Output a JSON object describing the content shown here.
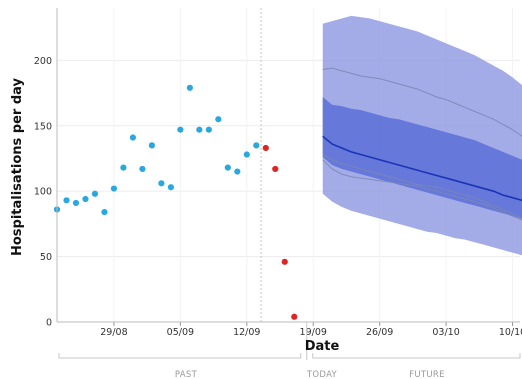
{
  "chart_data": {
    "type": "scatter",
    "xlabel": "Date",
    "ylabel": "Hospitalisations per day",
    "ylim": [
      0,
      240
    ],
    "y_ticks": [
      "0",
      "50",
      "100",
      "150",
      "200"
    ],
    "x_ticks": [
      "29/08",
      "05/09",
      "12/09",
      "19/09",
      "26/09",
      "03/10",
      "10/10"
    ],
    "grid": true,
    "observed_color": "#29a8e0",
    "incomplete_color": "#e02424",
    "band_outer_color": "#8c97e0",
    "band_inner_color": "#5c6fd6",
    "median_color": "#1a35b8",
    "scenario_line_color": "#7b86b8",
    "observed": [
      {
        "x": "2021-08-23",
        "y": 86
      },
      {
        "x": "2021-08-24",
        "y": 93
      },
      {
        "x": "2021-08-25",
        "y": 91
      },
      {
        "x": "2021-08-26",
        "y": 94
      },
      {
        "x": "2021-08-27",
        "y": 98
      },
      {
        "x": "2021-08-28",
        "y": 84
      },
      {
        "x": "2021-08-29",
        "y": 102
      },
      {
        "x": "2021-08-30",
        "y": 118
      },
      {
        "x": "2021-08-31",
        "y": 141
      },
      {
        "x": "2021-09-01",
        "y": 117
      },
      {
        "x": "2021-09-02",
        "y": 135
      },
      {
        "x": "2021-09-03",
        "y": 106
      },
      {
        "x": "2021-09-04",
        "y": 103
      },
      {
        "x": "2021-09-05",
        "y": 147
      },
      {
        "x": "2021-09-06",
        "y": 179
      },
      {
        "x": "2021-09-07",
        "y": 147
      },
      {
        "x": "2021-09-08",
        "y": 147
      },
      {
        "x": "2021-09-09",
        "y": 155
      },
      {
        "x": "2021-09-10",
        "y": 118
      },
      {
        "x": "2021-09-11",
        "y": 115
      },
      {
        "x": "2021-09-12",
        "y": 128
      },
      {
        "x": "2021-09-13",
        "y": 135
      }
    ],
    "incomplete": [
      {
        "x": "2021-09-14",
        "y": 133
      },
      {
        "x": "2021-09-15",
        "y": 117
      },
      {
        "x": "2021-09-16",
        "y": 46
      },
      {
        "x": "2021-09-17",
        "y": 4
      }
    ],
    "forecast": {
      "x": [
        "2021-09-20",
        "2021-09-21",
        "2021-09-22",
        "2021-09-23",
        "2021-09-24",
        "2021-09-25",
        "2021-09-26",
        "2021-09-27",
        "2021-09-28",
        "2021-09-29",
        "2021-09-30",
        "2021-10-01",
        "2021-10-02",
        "2021-10-03",
        "2021-10-04",
        "2021-10-05",
        "2021-10-06",
        "2021-10-07",
        "2021-10-08",
        "2021-10-09",
        "2021-10-10",
        "2021-10-11",
        "2021-10-12"
      ],
      "median": [
        142,
        136,
        133,
        130,
        128,
        126,
        124,
        122,
        120,
        118,
        116,
        114,
        112,
        110,
        108,
        106,
        104,
        102,
        100,
        97,
        95,
        93,
        91
      ],
      "inner_lower": [
        126,
        120,
        117,
        115,
        113,
        111,
        109,
        107,
        105,
        103,
        101,
        99,
        97,
        95,
        93,
        91,
        89,
        87,
        85,
        83,
        81,
        79,
        77
      ],
      "inner_upper": [
        172,
        166,
        165,
        163,
        162,
        160,
        158,
        156,
        155,
        153,
        151,
        149,
        147,
        145,
        143,
        141,
        139,
        136,
        133,
        130,
        127,
        124,
        120
      ],
      "outer_lower": [
        98,
        92,
        88,
        85,
        83,
        81,
        79,
        77,
        75,
        73,
        71,
        69,
        68,
        66,
        64,
        63,
        61,
        59,
        57,
        55,
        53,
        51,
        50
      ],
      "outer_upper": [
        228,
        230,
        232,
        234,
        233,
        232,
        230,
        228,
        226,
        224,
        222,
        219,
        216,
        213,
        210,
        207,
        204,
        200,
        196,
        192,
        187,
        181,
        172
      ],
      "scenarios": [
        [
          193,
          194,
          192,
          190,
          188,
          187,
          186,
          184,
          182,
          180,
          178,
          175,
          172,
          170,
          167,
          164,
          161,
          158,
          155,
          151,
          147,
          142,
          137
        ],
        [
          128,
          124,
          121,
          119,
          117,
          115,
          113,
          111,
          109,
          107,
          105,
          104,
          103,
          101,
          99,
          97,
          95,
          92,
          89,
          86,
          83,
          79,
          75
        ],
        [
          124,
          117,
          113,
          111,
          110,
          109,
          108,
          107,
          106,
          105,
          104,
          102,
          100,
          98,
          96,
          94,
          92,
          90,
          87,
          84,
          81,
          78,
          75
        ]
      ]
    },
    "periods": {
      "past": "PAST",
      "today": "TODAY",
      "future": "FUTURE"
    }
  }
}
